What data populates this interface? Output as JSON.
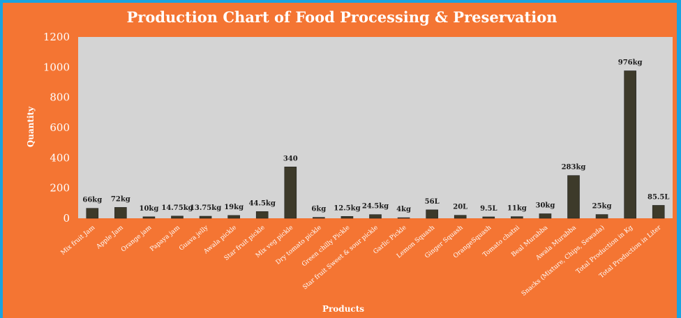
{
  "colors": {
    "outer_border": "#1aa3e0",
    "background": "#f47533",
    "plot_area": "#d4d4d4",
    "bar": "#3d3a2a",
    "text": "#ffffff"
  },
  "chart_data": {
    "type": "bar",
    "title": "Production Chart of Food Processing & Preservation",
    "xlabel": "Products",
    "ylabel": "Quantity",
    "ylim": [
      0,
      1200
    ],
    "yticks": [
      0,
      200,
      400,
      600,
      800,
      1000,
      1200
    ],
    "grid": false,
    "legend": "none",
    "categories": [
      "Mix fruit Jam",
      "Apple Jam",
      "Orange jam",
      "Papaya jam",
      "Guava jelly",
      "Awala pickle",
      "Star fruit pickle",
      "Mix veg pickle",
      "Dry tomato pickle",
      "Green chilly Pickle",
      "Star fruit Sweet & sour pickle",
      "Garlic Pickle",
      "Lemon Squash",
      "Ginger Squash",
      "OrangeSquash",
      "Tomato chatni",
      "Beal Murabba",
      "Awala Murabba",
      "Snacks (Mixture, Chips, Sewada)",
      "Total Production in Kg",
      "Total Production in Liter"
    ],
    "values": [
      66,
      72,
      10,
      14.75,
      13.75,
      19,
      44.5,
      340,
      6,
      12.5,
      24.5,
      4,
      56,
      20,
      9.5,
      11,
      30,
      283,
      25,
      976,
      85.5
    ],
    "data_labels": [
      "66kg",
      "72kg",
      "10kg",
      "14.75kg",
      "13.75kg",
      "19kg",
      "44.5kg",
      "340",
      "6kg",
      "12.5kg",
      "24.5kg",
      "4kg",
      "56L",
      "20L",
      "9.5L",
      "11kg",
      "30kg",
      "283kg",
      "25kg",
      "976kg",
      "85.5L"
    ]
  }
}
